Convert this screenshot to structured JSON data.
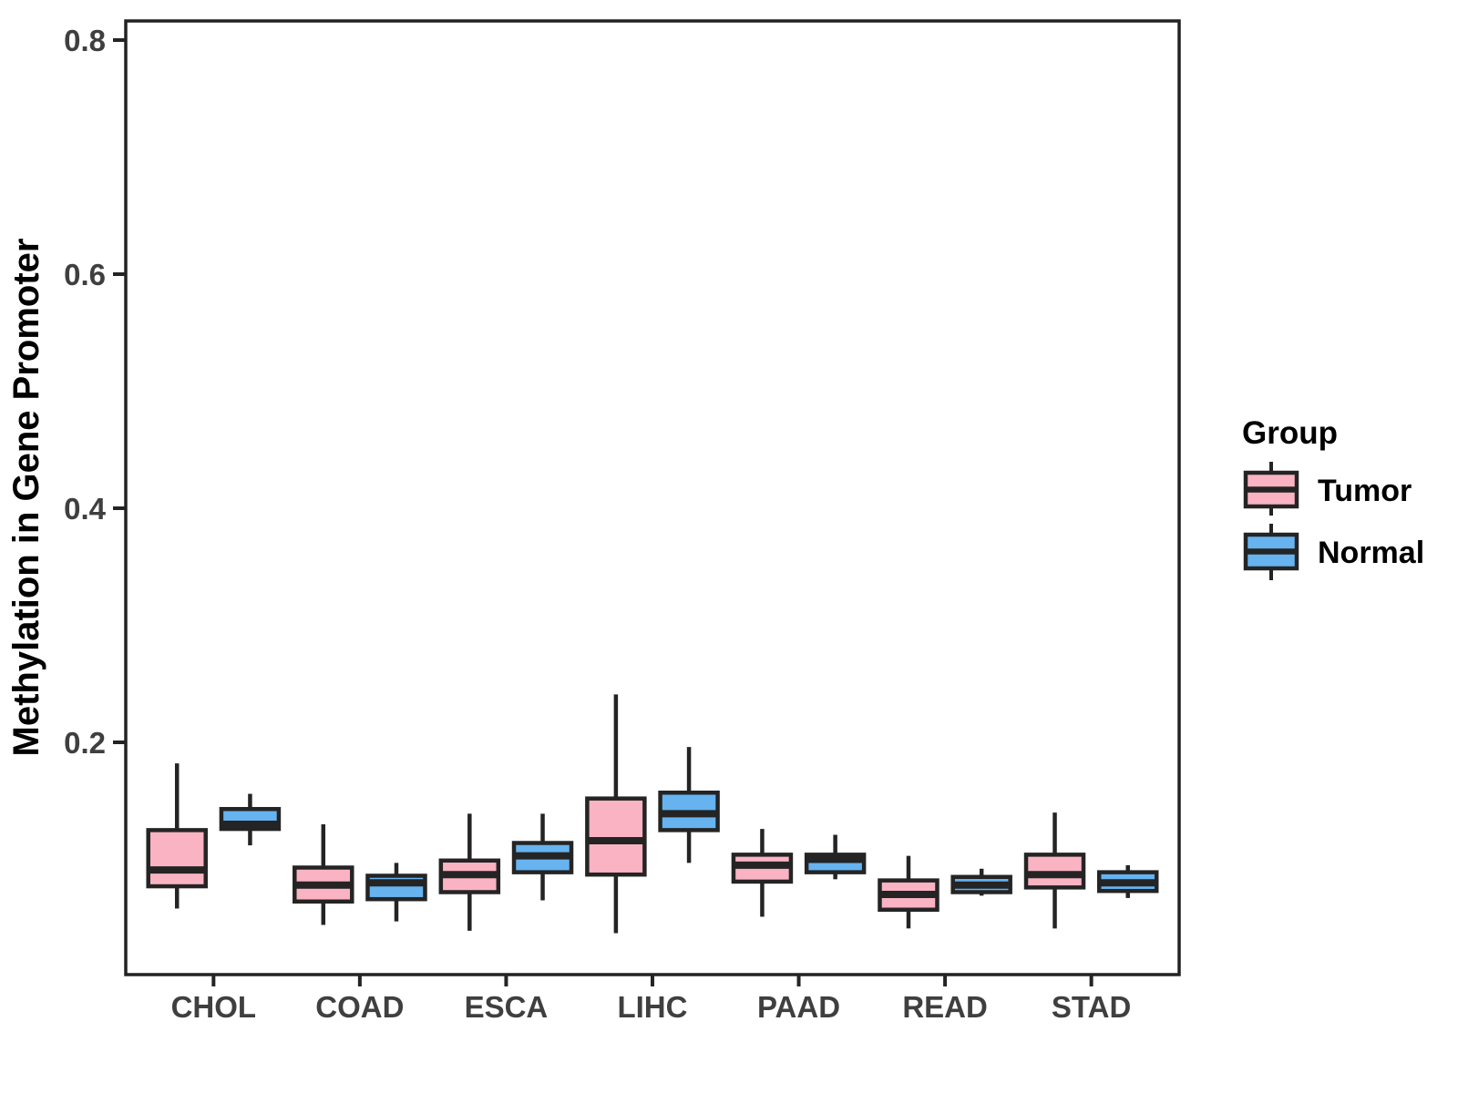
{
  "figure": {
    "background": "#FFFFFF"
  },
  "chart_data": {
    "type": "boxplot",
    "orientation": "vertical",
    "grouped": true,
    "title": "",
    "xlabel": "",
    "ylabel": "Methylation in Gene Promoter",
    "categories": [
      "CHOL",
      "COAD",
      "ESCA",
      "LIHC",
      "PAAD",
      "READ",
      "STAD"
    ],
    "y_axis": {
      "ticks": [
        0.2,
        0.4,
        0.6,
        0.8
      ],
      "tick_labels": [
        "0.2",
        "0.4",
        "0.6",
        "0.8"
      ],
      "range_shown": [
        0.0,
        0.82
      ],
      "grid": false
    },
    "legend": {
      "title": "Group",
      "position": "right",
      "entries": [
        {
          "label": "Tumor",
          "fill": "#F9B3C3"
        },
        {
          "label": "Normal",
          "fill": "#66B3F0"
        }
      ]
    },
    "series": [
      {
        "name": "Tumor",
        "fill": "#F9B3C3",
        "boxes": [
          {
            "category": "CHOL",
            "whisker_low": 0.058,
            "q1": 0.077,
            "median": 0.091,
            "q3": 0.125,
            "whisker_high": 0.182
          },
          {
            "category": "COAD",
            "whisker_low": 0.044,
            "q1": 0.064,
            "median": 0.078,
            "q3": 0.093,
            "whisker_high": 0.13
          },
          {
            "category": "ESCA",
            "whisker_low": 0.039,
            "q1": 0.072,
            "median": 0.087,
            "q3": 0.099,
            "whisker_high": 0.139
          },
          {
            "category": "LIHC",
            "whisker_low": 0.037,
            "q1": 0.087,
            "median": 0.116,
            "q3": 0.152,
            "whisker_high": 0.241
          },
          {
            "category": "PAAD",
            "whisker_low": 0.051,
            "q1": 0.081,
            "median": 0.095,
            "q3": 0.104,
            "whisker_high": 0.126
          },
          {
            "category": "READ",
            "whisker_low": 0.041,
            "q1": 0.057,
            "median": 0.07,
            "q3": 0.082,
            "whisker_high": 0.103
          },
          {
            "category": "STAD",
            "whisker_low": 0.041,
            "q1": 0.076,
            "median": 0.087,
            "q3": 0.104,
            "whisker_high": 0.14
          }
        ]
      },
      {
        "name": "Normal",
        "fill": "#66B3F0",
        "boxes": [
          {
            "category": "CHOL",
            "whisker_low": 0.112,
            "q1": 0.126,
            "median": 0.13,
            "q3": 0.143,
            "whisker_high": 0.156
          },
          {
            "category": "COAD",
            "whisker_low": 0.047,
            "q1": 0.066,
            "median": 0.08,
            "q3": 0.086,
            "whisker_high": 0.097
          },
          {
            "category": "ESCA",
            "whisker_low": 0.065,
            "q1": 0.089,
            "median": 0.103,
            "q3": 0.114,
            "whisker_high": 0.139
          },
          {
            "category": "LIHC",
            "whisker_low": 0.097,
            "q1": 0.125,
            "median": 0.139,
            "q3": 0.157,
            "whisker_high": 0.196
          },
          {
            "category": "PAAD",
            "whisker_low": 0.083,
            "q1": 0.089,
            "median": 0.1,
            "q3": 0.104,
            "whisker_high": 0.121
          },
          {
            "category": "READ",
            "whisker_low": 0.069,
            "q1": 0.072,
            "median": 0.078,
            "q3": 0.085,
            "whisker_high": 0.092
          },
          {
            "category": "STAD",
            "whisker_low": 0.067,
            "q1": 0.073,
            "median": 0.08,
            "q3": 0.089,
            "whisker_high": 0.095
          }
        ]
      }
    ],
    "style": {
      "box_stroke": "#242424",
      "axis_line": "#222222",
      "tick_label_color": "#3F3F3F",
      "title_color": "#000000"
    }
  }
}
